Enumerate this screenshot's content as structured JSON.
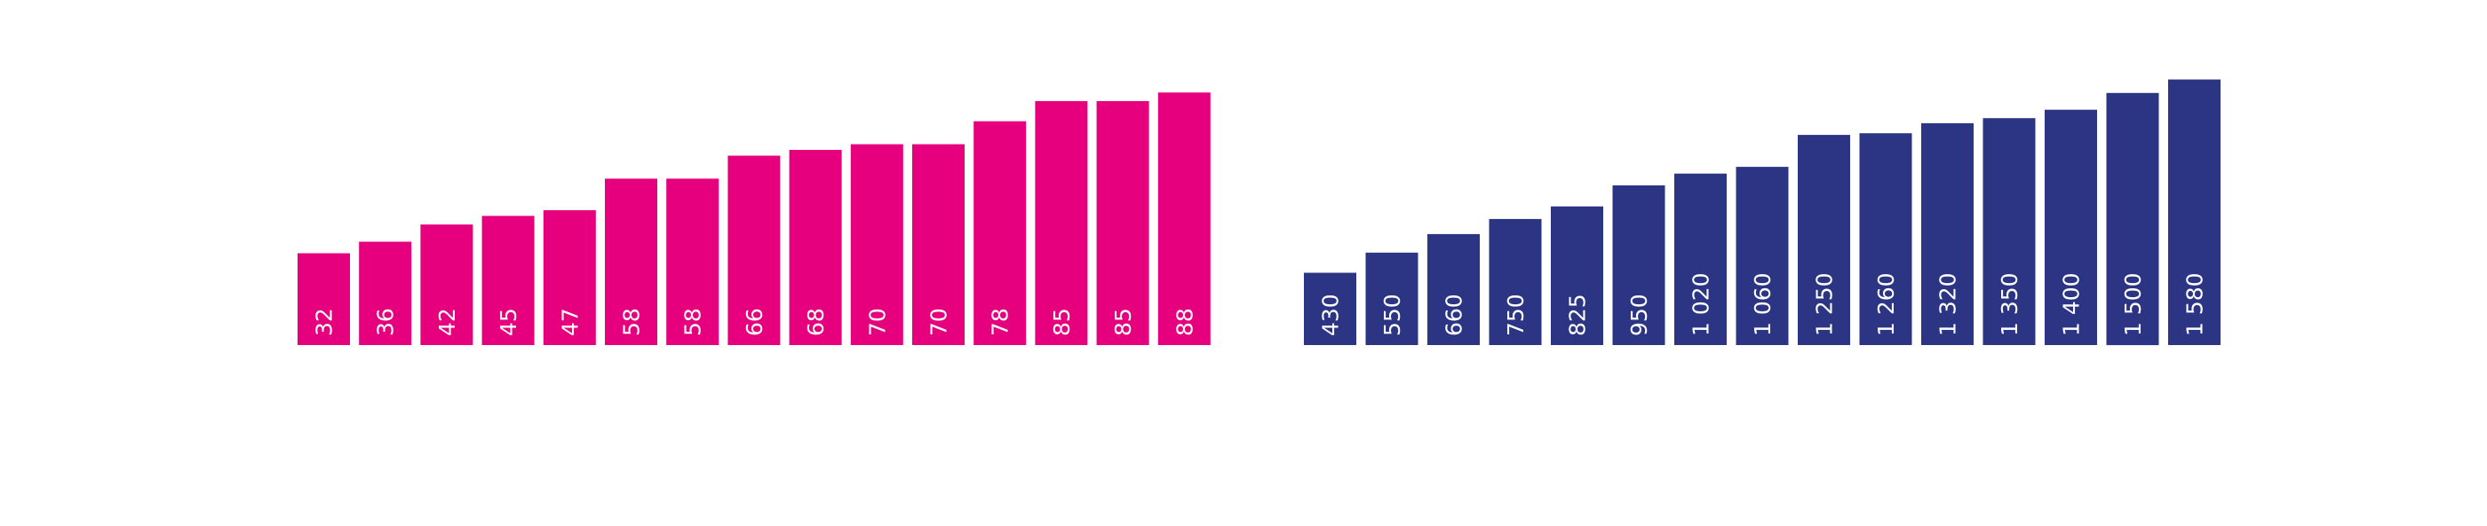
{
  "chart_data": [
    {
      "type": "bar",
      "color": "#e6007e",
      "label_color": "#ffffff",
      "values": [
        32,
        36,
        42,
        45,
        47,
        58,
        58,
        66,
        68,
        70,
        70,
        78,
        85,
        85,
        88
      ],
      "labels": [
        "32",
        "36",
        "42",
        "45",
        "47",
        "58",
        "58",
        "66",
        "68",
        "70",
        "70",
        "78",
        "85",
        "85",
        "88"
      ],
      "grid": false,
      "axes_visible": false
    },
    {
      "type": "bar",
      "color": "#2b3583",
      "label_color": "#ffffff",
      "values": [
        430,
        550,
        660,
        750,
        825,
        950,
        1020,
        1060,
        1250,
        1260,
        1320,
        1350,
        1400,
        1500,
        1580
      ],
      "labels": [
        "430",
        "550",
        "660",
        "750",
        "825",
        "950",
        "1 020",
        "1 060",
        "1 250",
        "1 260",
        "1 320",
        "1 350",
        "1 400",
        "1 500",
        "1 580"
      ],
      "grid": false,
      "axes_visible": false
    }
  ]
}
